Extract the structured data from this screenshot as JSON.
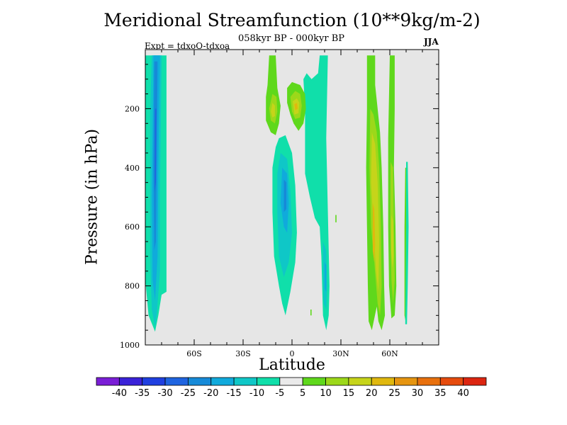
{
  "chart_data": {
    "type": "heatmap",
    "title": "Meridional Streamfunction (10**9kg/m-2)",
    "subtitle": "058kyr BP - 000kyr BP",
    "experiment": "Expt = tdxoO-tdxoa",
    "season": "JJA",
    "xlabel": "Latitude",
    "ylabel": "Pressure (in hPa)",
    "xlim": [
      -90,
      90
    ],
    "ylim": [
      1000,
      0
    ],
    "x_ticks": [
      -60,
      -30,
      0,
      30,
      60
    ],
    "x_tick_labels": [
      "60S",
      "30S",
      "0",
      "30N",
      "60N"
    ],
    "y_ticks": [
      200,
      400,
      600,
      800,
      1000
    ],
    "y_tick_labels": [
      "200",
      "400",
      "600",
      "800",
      "1000"
    ],
    "background_color": "#e6e6e6",
    "colorbar": {
      "levels": [
        -40,
        -35,
        -30,
        -25,
        -20,
        -15,
        -10,
        -5,
        5,
        10,
        15,
        20,
        25,
        30,
        35,
        40
      ],
      "labels": [
        "-40",
        "-35",
        "-30",
        "-25",
        "-20",
        "-15",
        "-10",
        "-5",
        "5",
        "10",
        "15",
        "20",
        "25",
        "30",
        "35",
        "40"
      ],
      "colors": [
        "#7a1ed6",
        "#3a22d8",
        "#1f3fe0",
        "#1f64e0",
        "#168ad8",
        "#10aadc",
        "#0fc7c7",
        "#10dfaa",
        "#eaeaea",
        "#5fd81c",
        "#9cd81a",
        "#c6d41a",
        "#e0b80e",
        "#e69510",
        "#e8700d",
        "#e64b0d",
        "#dc2510"
      ]
    },
    "features": [
      {
        "name": "SH high-latitude negative cell",
        "sign": "negative",
        "x_range": [
          -87,
          -70
        ],
        "p_range": [
          20,
          960
        ],
        "min_level": -25
      },
      {
        "name": "Equatorial negative cell",
        "sign": "negative",
        "x_range": [
          -12,
          3
        ],
        "p_range": [
          300,
          900
        ],
        "min_level": -20
      },
      {
        "name": "Tropical negative column",
        "sign": "negative",
        "x_range": [
          2,
          23
        ],
        "p_range": [
          20,
          940
        ],
        "min_level": -15
      },
      {
        "name": "Upper tropical positive cell south",
        "sign": "positive",
        "x_range": [
          -15,
          -7
        ],
        "p_range": [
          100,
          290
        ],
        "max_level": 20
      },
      {
        "name": "Upper tropical positive cell north",
        "sign": "positive",
        "x_range": [
          -2,
          9
        ],
        "p_range": [
          100,
          270
        ],
        "max_level": 20
      },
      {
        "name": "NH mid-latitude positive column",
        "sign": "positive",
        "x_range": [
          46,
          58
        ],
        "p_range": [
          20,
          950
        ],
        "max_level": 20
      },
      {
        "name": "NH high-latitude positive column",
        "sign": "positive",
        "x_range": [
          60,
          71
        ],
        "p_range": [
          20,
          930
        ],
        "max_level": 15
      }
    ]
  }
}
